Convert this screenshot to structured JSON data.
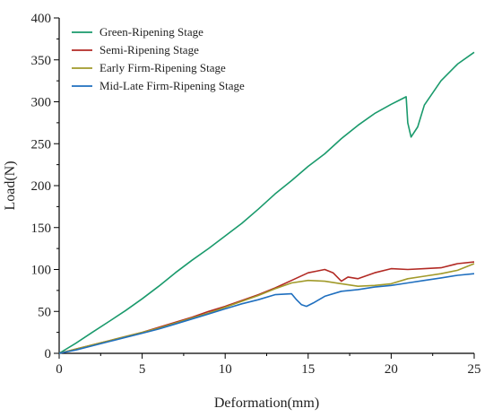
{
  "chart_data": {
    "type": "line",
    "xlabel": "Deformation(mm)",
    "ylabel": "Load(N)",
    "xlim": [
      0,
      25
    ],
    "ylim": [
      0,
      400
    ],
    "xticks": [
      0,
      5,
      10,
      15,
      20,
      25
    ],
    "yticks": [
      0,
      50,
      100,
      150,
      200,
      250,
      300,
      350,
      400
    ],
    "grid": false,
    "legend_position": "top-left",
    "series": [
      {
        "name": "Green-Ripening Stage",
        "color": "#1a9a6c",
        "x": [
          0,
          1,
          2,
          3,
          4,
          5,
          6,
          7,
          8,
          9,
          10,
          11,
          12,
          13,
          14,
          15,
          16,
          17,
          18,
          19,
          20,
          20.5,
          20.9,
          21.0,
          21.2,
          21.6,
          22,
          23,
          24,
          25
        ],
        "y": [
          0,
          12,
          25,
          38,
          51,
          65,
          80,
          96,
          111,
          125,
          140,
          155,
          172,
          190,
          206,
          223,
          238,
          256,
          272,
          286,
          297,
          302,
          306,
          275,
          258,
          270,
          296,
          325,
          345,
          359
        ]
      },
      {
        "name": "Semi-Ripening Stage",
        "color": "#b22a24",
        "x": [
          0,
          1,
          2,
          3,
          4,
          5,
          6,
          7,
          8,
          9,
          10,
          11,
          12,
          13,
          14,
          15,
          15.5,
          16,
          16.5,
          17,
          17.4,
          18,
          19,
          20,
          21,
          22,
          23,
          24,
          25
        ],
        "y": [
          0,
          5,
          10,
          15,
          20,
          25,
          31,
          37,
          43,
          50,
          56,
          63,
          70,
          78,
          87,
          96,
          98,
          100,
          96,
          86,
          91,
          89,
          96,
          101,
          100,
          101,
          102,
          107,
          109
        ]
      },
      {
        "name": "Early Firm-Ripening Stage",
        "color": "#a19a2a",
        "x": [
          0,
          1,
          2,
          3,
          4,
          5,
          6,
          7,
          8,
          9,
          10,
          11,
          12,
          13,
          14,
          15,
          16,
          17,
          18,
          19,
          20,
          21,
          22,
          23,
          24,
          25
        ],
        "y": [
          0,
          5,
          10,
          15,
          20,
          25,
          30,
          36,
          42,
          48,
          55,
          62,
          69,
          77,
          84,
          87,
          86,
          83,
          80,
          81,
          83,
          89,
          92,
          95,
          99,
          107
        ]
      },
      {
        "name": "Mid-Late Firm-Ripening Stage",
        "color": "#1f6fbf",
        "x": [
          0,
          1,
          2,
          3,
          4,
          5,
          6,
          7,
          8,
          9,
          10,
          11,
          12,
          13,
          14,
          14.3,
          14.6,
          14.9,
          15.3,
          16,
          17,
          18,
          19,
          20,
          21,
          22,
          23,
          24,
          25
        ],
        "y": [
          0,
          4,
          9,
          14,
          19,
          24,
          29,
          35,
          41,
          47,
          53,
          59,
          64,
          70,
          71,
          64,
          58,
          56,
          60,
          68,
          74,
          76,
          79,
          81,
          84,
          87,
          90,
          93,
          95
        ]
      }
    ]
  }
}
